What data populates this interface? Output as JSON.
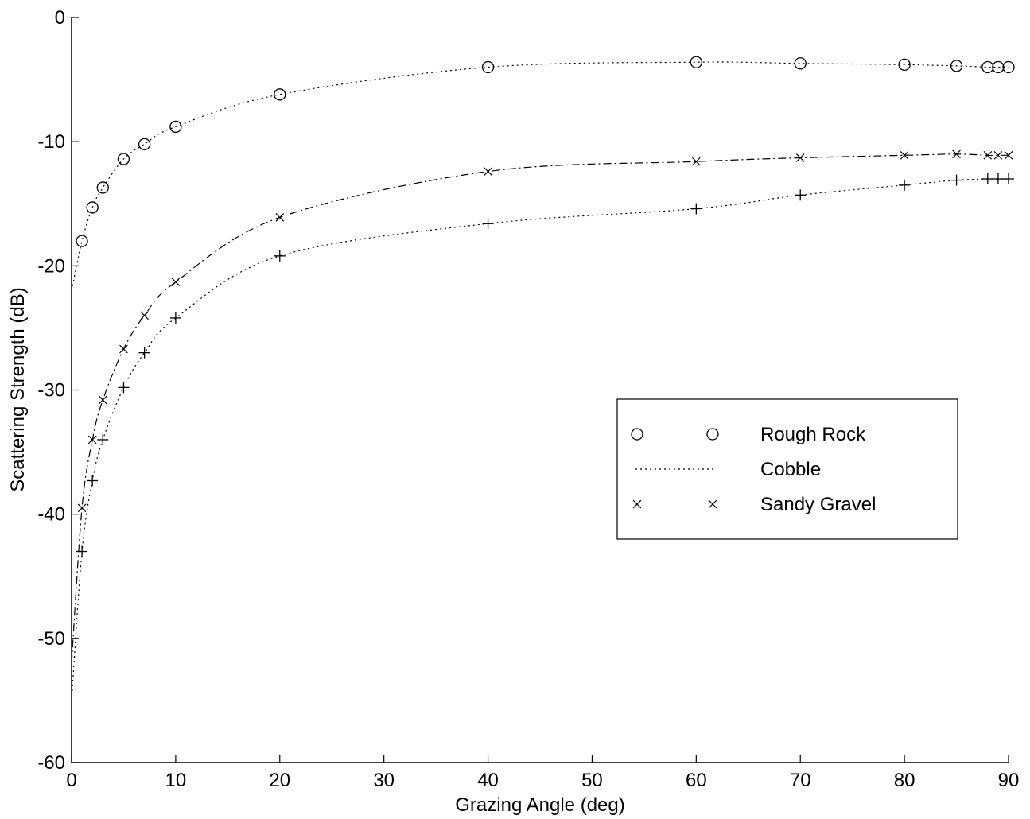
{
  "chart_data": {
    "type": "line",
    "title": "",
    "xlabel": "Grazing Angle (deg)",
    "ylabel": "Scattering Strength (dB)",
    "xlim": [
      0,
      90
    ],
    "ylim": [
      -60,
      0
    ],
    "xticks": [
      0,
      10,
      20,
      30,
      40,
      50,
      60,
      70,
      80,
      90
    ],
    "yticks": [
      0,
      -10,
      -20,
      -30,
      -40,
      -50,
      -60
    ],
    "grid": false,
    "legend_position": "right-middle",
    "series": [
      {
        "name": "Rough Rock",
        "marker": "circle",
        "line_style": "dotted",
        "color": "#000000",
        "x": [
          1,
          2,
          3,
          5,
          7,
          10,
          20,
          40,
          60,
          70,
          80,
          85,
          88,
          89,
          90
        ],
        "y": [
          -18,
          -15.3,
          -13.7,
          -11.4,
          -10.2,
          -8.8,
          -6.2,
          -4.0,
          -3.6,
          -3.7,
          -3.8,
          -3.9,
          -4.0,
          -4.0,
          -4.0
        ]
      },
      {
        "name": "Cobble",
        "marker": "plus",
        "line_style": "dotted",
        "color": "#000000",
        "x": [
          1,
          2,
          3,
          5,
          7,
          10,
          20,
          40,
          60,
          70,
          80,
          85,
          88,
          89,
          90
        ],
        "y": [
          -43,
          -37.3,
          -34.0,
          -29.8,
          -27.0,
          -24.2,
          -19.2,
          -16.6,
          -15.4,
          -14.3,
          -13.5,
          -13.1,
          -13.0,
          -13.0,
          -13.0
        ]
      },
      {
        "name": "Sandy Gravel",
        "marker": "x",
        "line_style": "dashdot",
        "color": "#000000",
        "x": [
          1,
          2,
          3,
          5,
          7,
          10,
          20,
          40,
          60,
          70,
          80,
          85,
          88,
          89,
          90
        ],
        "y": [
          -39.5,
          -34.0,
          -30.8,
          -26.7,
          -24.0,
          -21.3,
          -16.1,
          -12.4,
          -11.6,
          -11.3,
          -11.1,
          -11.0,
          -11.1,
          -11.1,
          -11.1
        ]
      }
    ]
  }
}
